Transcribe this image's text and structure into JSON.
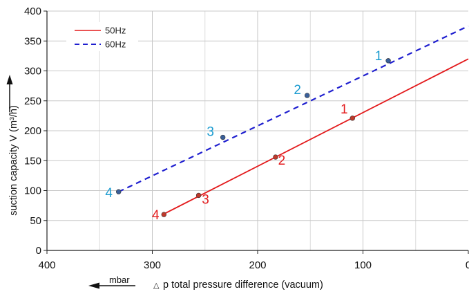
{
  "chart_data": {
    "type": "line",
    "title": "",
    "xlabel": "p total pressure difference (vacuum)",
    "xlabel_symbol": "△",
    "x_unit": "mbar",
    "ylabel": "suction capacity V (m³/h)",
    "xlim": [
      400,
      0
    ],
    "ylim": [
      0,
      400
    ],
    "x_reversed": true,
    "x_ticks": [
      "400",
      "300",
      "200",
      "100",
      "0"
    ],
    "y_ticks": [
      "0",
      "50",
      "100",
      "150",
      "200",
      "250",
      "300",
      "350",
      "400"
    ],
    "grid": true,
    "legend_position": "top-left",
    "series": [
      {
        "name": "50Hz",
        "color": "#e31a1c",
        "style": "solid",
        "line": {
          "x": [
            290,
            0
          ],
          "y": [
            60,
            320
          ]
        },
        "points": [
          {
            "label": "1",
            "x": 110,
            "y": 221
          },
          {
            "label": "2",
            "x": 183,
            "y": 156
          },
          {
            "label": "3",
            "x": 256,
            "y": 92
          },
          {
            "label": "4",
            "x": 289,
            "y": 60
          }
        ]
      },
      {
        "name": "60Hz",
        "color": "#1f1fcf",
        "label_color": "#1a9bd0",
        "style": "dashed",
        "line": {
          "x": [
            332,
            0
          ],
          "y": [
            98,
            375
          ]
        },
        "points": [
          {
            "label": "1",
            "x": 76,
            "y": 317
          },
          {
            "label": "2",
            "x": 153,
            "y": 259
          },
          {
            "label": "3",
            "x": 233,
            "y": 189
          },
          {
            "label": "4",
            "x": 332,
            "y": 98
          }
        ]
      }
    ]
  }
}
